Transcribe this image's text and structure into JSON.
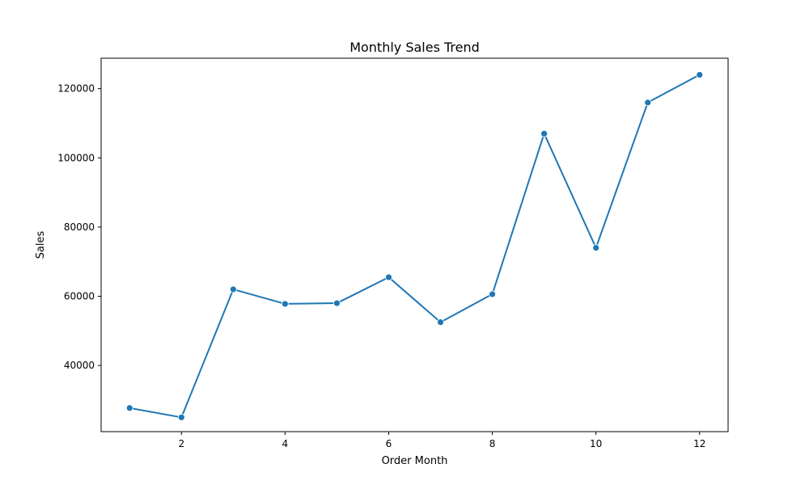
{
  "chart_data": {
    "type": "line",
    "title": "Monthly Sales Trend",
    "xlabel": "Order Month",
    "ylabel": "Sales",
    "x": [
      1,
      2,
      3,
      4,
      5,
      6,
      7,
      8,
      9,
      10,
      11,
      12
    ],
    "series": [
      {
        "values": [
          27700,
          25000,
          62000,
          57800,
          58000,
          65500,
          52500,
          60600,
          107000,
          74000,
          116000,
          124000
        ],
        "color": "#1f77b4",
        "marker": "circle"
      }
    ],
    "xlim": [
      0.45,
      12.55
    ],
    "ylim": [
      20870,
      128800
    ],
    "xticks": [
      2,
      4,
      6,
      8,
      10,
      12
    ],
    "yticks": [
      40000,
      60000,
      80000,
      100000,
      120000
    ],
    "grid": false,
    "legend": "none"
  }
}
